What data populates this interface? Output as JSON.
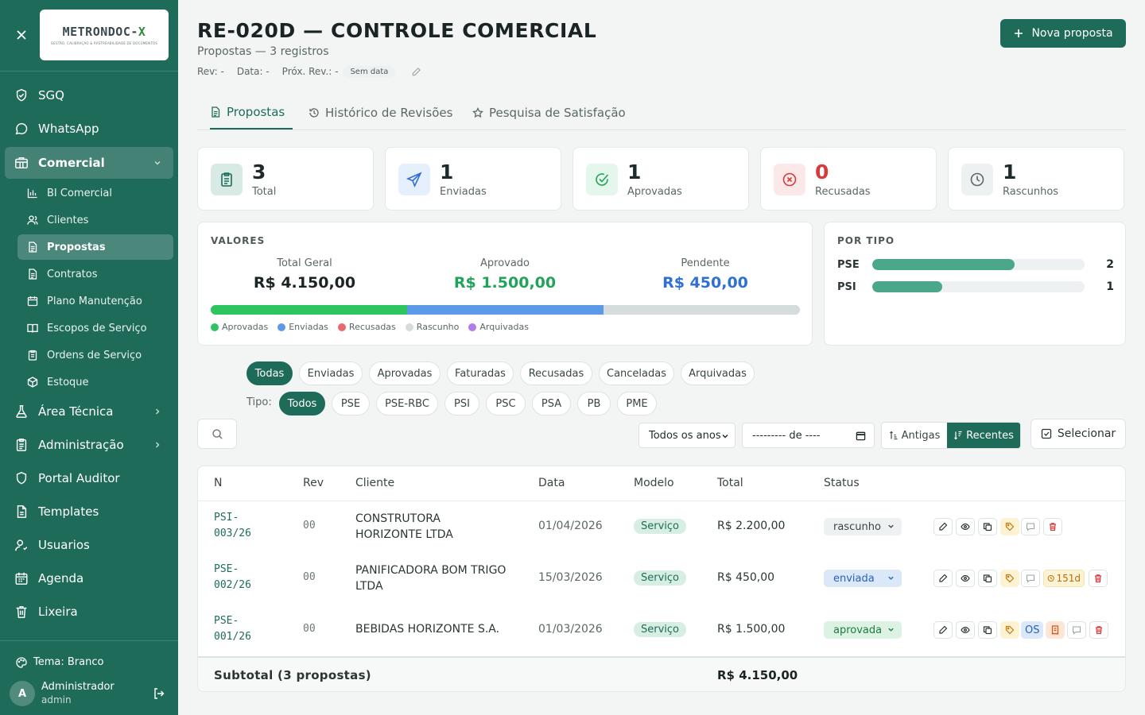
{
  "sidebar": {
    "logo": {
      "main": "METRONDOC",
      "suffix": "X",
      "tagline": "GESTÃO, CALIBRAÇÃO & RASTREABILIDADE DE DOCUMENTOS"
    },
    "items": [
      {
        "label": "SGQ",
        "icon": "shield-check-icon"
      },
      {
        "label": "WhatsApp",
        "icon": "chat-bubble-icon"
      },
      {
        "label": "Comercial",
        "icon": "store-icon",
        "open": true
      },
      {
        "label": "Área Técnica",
        "icon": "flask-icon"
      },
      {
        "label": "Administração",
        "icon": "clipboard-icon"
      },
      {
        "label": "Portal Auditor",
        "icon": "shield-icon"
      },
      {
        "label": "Templates",
        "icon": "file-icon"
      },
      {
        "label": "Usuarios",
        "icon": "users-icon"
      },
      {
        "label": "Agenda",
        "icon": "calendar-icon"
      },
      {
        "label": "Lixeira",
        "icon": "trash-icon"
      }
    ],
    "subitems": [
      {
        "label": "BI Comercial",
        "icon": "bar-chart-icon"
      },
      {
        "label": "Clientes",
        "icon": "users-icon"
      },
      {
        "label": "Propostas",
        "icon": "file-text-icon",
        "active": true
      },
      {
        "label": "Contratos",
        "icon": "file-text-icon"
      },
      {
        "label": "Plano Manutenção",
        "icon": "calendar-icon"
      },
      {
        "label": "Escopos de Serviço",
        "icon": "book-icon"
      },
      {
        "label": "Ordens de Serviço",
        "icon": "clipboard-icon"
      },
      {
        "label": "Estoque",
        "icon": "package-icon"
      }
    ],
    "theme_label": "Tema: Branco",
    "user": {
      "initial": "A",
      "name": "Administrador",
      "role": "admin"
    }
  },
  "header": {
    "title": "RE-020D — CONTROLE COMERCIAL",
    "subtitle": "Propostas — 3 registros",
    "rev": "Rev: -",
    "data": "Data: -",
    "prox_rev": "Próx. Rev.: -",
    "no_date": "Sem data",
    "new_button": "Nova proposta"
  },
  "tabs": [
    {
      "label": "Propostas",
      "active": true
    },
    {
      "label": "Histórico de Revisões"
    },
    {
      "label": "Pesquisa de Satisfação"
    }
  ],
  "stats": [
    {
      "value": "3",
      "label": "Total",
      "color": "#1f6b5a",
      "bg": "#d7ebe4"
    },
    {
      "value": "1",
      "label": "Enviadas",
      "color": "#2f6fd6",
      "bg": "#e6effc"
    },
    {
      "value": "1",
      "label": "Aprovadas",
      "color": "#22a35a",
      "bg": "#e5f6ec"
    },
    {
      "value": "0",
      "label": "Recusadas",
      "color": "#d63a3a",
      "bg": "#fce8e8"
    },
    {
      "value": "1",
      "label": "Rascunhos",
      "color": "#5b6767",
      "bg": "#eef1f1"
    }
  ],
  "valores": {
    "heading": "VALORES",
    "total_label": "Total Geral",
    "total_value": "R$ 4.150,00",
    "aprovado_label": "Aprovado",
    "aprovado_value": "R$ 1.500,00",
    "pendente_label": "Pendente",
    "pendente_value": "R$ 450,00",
    "distribution": [
      {
        "label": "Aprovadas",
        "fraction": 0.3333,
        "color": "#2ec45f"
      },
      {
        "label": "Enviadas",
        "fraction": 0.3333,
        "color": "#5b9ae8"
      },
      {
        "label": "Recusadas",
        "fraction": 0,
        "color": "#e86a6a"
      },
      {
        "label": "Rascunho",
        "fraction": 0.3334,
        "color": "#d6dbdb"
      },
      {
        "label": "Arquivadas",
        "fraction": 0,
        "color": "#b07de8"
      }
    ]
  },
  "por_tipo": {
    "heading": "POR TIPO",
    "rows": [
      {
        "label": "PSE",
        "count": "2",
        "fraction": 0.67
      },
      {
        "label": "PSI",
        "count": "1",
        "fraction": 0.33
      }
    ]
  },
  "filters": {
    "status": [
      "Todas",
      "Enviadas",
      "Aprovadas",
      "Faturadas",
      "Recusadas",
      "Canceladas",
      "Arquivadas"
    ],
    "tipo_label": "Tipo:",
    "tipos": [
      "Todos",
      "PSE",
      "PSE-RBC",
      "PSI",
      "PSC",
      "PSA",
      "PB",
      "PME"
    ],
    "year_select": "Todos os anos",
    "month_input": "--------- de ----",
    "sort_old": "Antigas",
    "sort_new": "Recentes",
    "select_button": "Selecionar"
  },
  "table": {
    "columns": [
      "N",
      "Rev",
      "Cliente",
      "Data",
      "Modelo",
      "Total",
      "Status"
    ],
    "rows": [
      {
        "n1": "PSI-",
        "n2": "003/26",
        "rev": "00",
        "cliente1": "CONSTRUTORA",
        "cliente2": "HORIZONTE LTDA",
        "data": "01/04/2026",
        "modelo": "Serviço",
        "total": "R$ 2.200,00",
        "status": "rascunho",
        "status_color": "#3a4545",
        "status_bg": "#eef1f1",
        "days": "",
        "os": ""
      },
      {
        "n1": "PSE-",
        "n2": "002/26",
        "rev": "00",
        "cliente1": "PANIFICADORA BOM TRIGO",
        "cliente2": "LTDA",
        "data": "15/03/2026",
        "modelo": "Serviço",
        "total": "R$ 450,00",
        "status": "enviada",
        "status_color": "#2a5fb8",
        "status_bg": "#dbe8fa",
        "days": "151d",
        "os": ""
      },
      {
        "n1": "PSE-",
        "n2": "001/26",
        "rev": "00",
        "cliente1": "BEBIDAS HORIZONTE S.A.",
        "cliente2": "",
        "data": "01/03/2026",
        "modelo": "Serviço",
        "total": "R$ 1.500,00",
        "status": "aprovada",
        "status_color": "#1e7a3e",
        "status_bg": "#dcf3e4",
        "days": "",
        "os": "OS"
      }
    ],
    "subtotal_label": "Subtotal (3 propostas)",
    "subtotal_value": "R$ 4.150,00"
  }
}
